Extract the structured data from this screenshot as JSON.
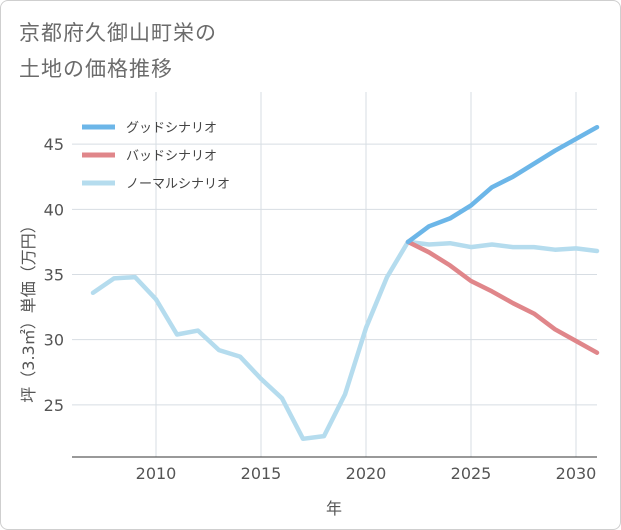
{
  "title_lines": [
    "京都府久御山町栄の",
    "土地の価格推移"
  ],
  "chart_data": {
    "type": "line",
    "title": "京都府久御山町栄の土地の価格推移",
    "xlabel": "年",
    "ylabel": "坪（3.3㎡）単価（万円）",
    "xlim": [
      2006,
      2031
    ],
    "ylim": [
      21,
      49
    ],
    "xticks": [
      2010,
      2015,
      2020,
      2025,
      2030
    ],
    "yticks": [
      25,
      30,
      35,
      40,
      45
    ],
    "grid": true,
    "legend_position": "top-left",
    "series": [
      {
        "name": "グッドシナリオ",
        "color": "#6cb6e8",
        "x": [
          2022,
          2023,
          2024,
          2025,
          2026,
          2027,
          2028,
          2029,
          2030,
          2031
        ],
        "y": [
          37.5,
          38.7,
          39.3,
          40.3,
          41.7,
          42.5,
          43.5,
          44.5,
          45.4,
          46.3
        ]
      },
      {
        "name": "バッドシナリオ",
        "color": "#e0868a",
        "x": [
          2022,
          2023,
          2024,
          2025,
          2026,
          2027,
          2028,
          2029,
          2030,
          2031
        ],
        "y": [
          37.5,
          36.7,
          35.7,
          34.5,
          33.7,
          32.8,
          32.0,
          30.8,
          29.9,
          29.0
        ]
      },
      {
        "name": "ノーマルシナリオ",
        "color": "#b5dcee",
        "x": [
          2007,
          2008,
          2009,
          2010,
          2011,
          2012,
          2013,
          2014,
          2015,
          2016,
          2017,
          2018,
          2019,
          2020,
          2021,
          2022,
          2023,
          2024,
          2025,
          2026,
          2027,
          2028,
          2029,
          2030,
          2031
        ],
        "y": [
          33.6,
          34.7,
          34.8,
          33.1,
          30.4,
          30.7,
          29.2,
          28.7,
          27.0,
          25.5,
          22.4,
          22.6,
          25.8,
          30.9,
          34.8,
          37.5,
          37.3,
          37.4,
          37.1,
          37.3,
          37.1,
          37.1,
          36.9,
          37.0,
          36.8
        ]
      }
    ]
  }
}
